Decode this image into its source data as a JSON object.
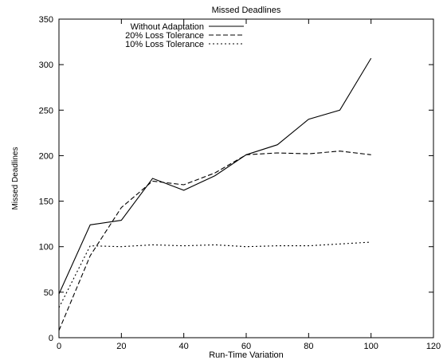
{
  "chart_data": {
    "type": "line",
    "title": "Missed Deadlines",
    "xlabel": "Run-Time Variation",
    "ylabel": "Missed Deadlines",
    "xlim": [
      0,
      120
    ],
    "ylim": [
      0,
      350
    ],
    "xticks": [
      0,
      20,
      40,
      60,
      80,
      100,
      120
    ],
    "yticks": [
      0,
      50,
      100,
      150,
      200,
      250,
      300,
      350
    ],
    "grid": false,
    "legend_position": "top-left",
    "series": [
      {
        "name": "Without Adaptation",
        "style": "solid",
        "x": [
          0,
          10,
          20,
          30,
          40,
          50,
          60,
          70,
          80,
          90,
          100
        ],
        "y": [
          48,
          124,
          129,
          175,
          162,
          178,
          201,
          212,
          240,
          250,
          307
        ]
      },
      {
        "name": "20% Loss Tolerance",
        "style": "dashed",
        "x": [
          0,
          10,
          20,
          30,
          40,
          50,
          60,
          70,
          80,
          90,
          100
        ],
        "y": [
          8,
          90,
          143,
          172,
          168,
          181,
          201,
          203,
          202,
          205,
          201
        ]
      },
      {
        "name": "10% Loss Tolerance",
        "style": "dotted",
        "x": [
          0,
          10,
          20,
          30,
          40,
          50,
          60,
          70,
          80,
          90,
          100
        ],
        "y": [
          33,
          101,
          100,
          102,
          101,
          102,
          100,
          101,
          101,
          103,
          105
        ]
      }
    ]
  }
}
